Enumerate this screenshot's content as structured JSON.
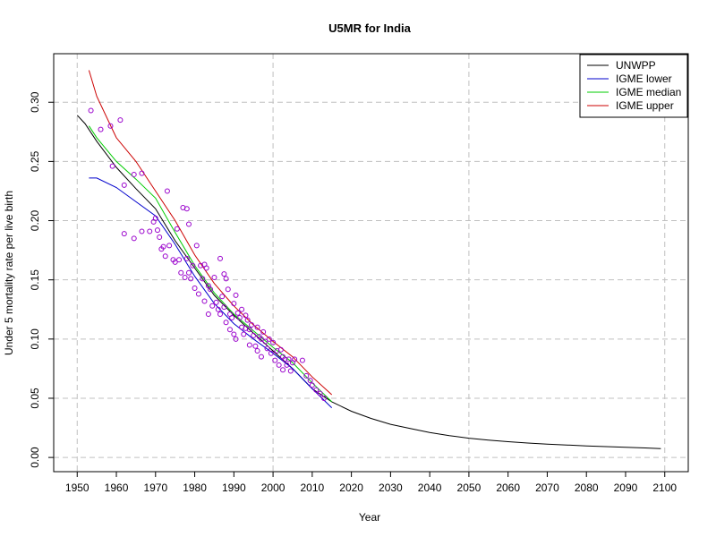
{
  "chart_data": {
    "type": "line",
    "title": "U5MR for India",
    "xlabel": "Year",
    "ylabel": "Under 5 mortality rate per live birth",
    "xlim": [
      1944,
      2106
    ],
    "ylim": [
      -0.012,
      0.341
    ],
    "x_ticks": [
      1950,
      1960,
      1970,
      1980,
      1990,
      2000,
      2010,
      2020,
      2030,
      2040,
      2050,
      2060,
      2070,
      2080,
      2090,
      2100
    ],
    "y_ticks": [
      0.0,
      0.05,
      0.1,
      0.15,
      0.2,
      0.25,
      0.3
    ],
    "y_tick_labels": [
      "0.00",
      "0.05",
      "0.10",
      "0.15",
      "0.20",
      "0.25",
      "0.30"
    ],
    "grid": true,
    "legend_position": "top-right",
    "series": [
      {
        "name": "UNWPP",
        "color": "#000000",
        "x": [
          1950,
          1952,
          1955,
          1960,
          1965,
          1970,
          1975,
          1980,
          1985,
          1990,
          1995,
          2000,
          2005,
          2010,
          2015,
          2020,
          2025,
          2030,
          2035,
          2040,
          2045,
          2050,
          2055,
          2060,
          2065,
          2070,
          2075,
          2080,
          2085,
          2090,
          2095,
          2099
        ],
        "y": [
          0.289,
          0.282,
          0.267,
          0.245,
          0.227,
          0.21,
          0.183,
          0.16,
          0.137,
          0.12,
          0.105,
          0.09,
          0.075,
          0.058,
          0.047,
          0.039,
          0.033,
          0.028,
          0.0245,
          0.021,
          0.0185,
          0.0163,
          0.0147,
          0.0133,
          0.0122,
          0.0113,
          0.0105,
          0.0098,
          0.0092,
          0.0086,
          0.008,
          0.0075
        ]
      },
      {
        "name": "IGME lower",
        "color": "#0000cc",
        "x": [
          1953,
          1955,
          1960,
          1965,
          1970,
          1975,
          1980,
          1985,
          1990,
          1995,
          2000,
          2005,
          2010,
          2015
        ],
        "y": [
          0.236,
          0.236,
          0.228,
          0.216,
          0.204,
          0.18,
          0.153,
          0.13,
          0.113,
          0.1,
          0.088,
          0.075,
          0.058,
          0.042
        ]
      },
      {
        "name": "IGME median",
        "color": "#00cc00",
        "x": [
          1953,
          1955,
          1960,
          1965,
          1970,
          1975,
          1980,
          1985,
          1990,
          1995,
          2000,
          2005,
          2010,
          2015
        ],
        "y": [
          0.28,
          0.27,
          0.25,
          0.235,
          0.219,
          0.19,
          0.162,
          0.139,
          0.121,
          0.107,
          0.093,
          0.08,
          0.063,
          0.047
        ]
      },
      {
        "name": "IGME upper",
        "color": "#cc0000",
        "x": [
          1953,
          1955,
          1960,
          1965,
          1970,
          1975,
          1980,
          1985,
          1990,
          1995,
          2000,
          2005,
          2010,
          2015
        ],
        "y": [
          0.327,
          0.305,
          0.27,
          0.25,
          0.225,
          0.2,
          0.171,
          0.147,
          0.128,
          0.112,
          0.098,
          0.085,
          0.068,
          0.053
        ]
      }
    ],
    "scatter": {
      "color": "#9900cc",
      "points": [
        [
          1953.5,
          0.293
        ],
        [
          1956,
          0.277
        ],
        [
          1958.5,
          0.28
        ],
        [
          1961,
          0.285
        ],
        [
          1959,
          0.246
        ],
        [
          1962,
          0.23
        ],
        [
          1964.5,
          0.239
        ],
        [
          1966.5,
          0.24
        ],
        [
          1962,
          0.189
        ],
        [
          1964.5,
          0.185
        ],
        [
          1966.5,
          0.191
        ],
        [
          1968.5,
          0.191
        ],
        [
          1969.5,
          0.199
        ],
        [
          1970,
          0.202
        ],
        [
          1970.5,
          0.192
        ],
        [
          1971,
          0.186
        ],
        [
          1971.5,
          0.176
        ],
        [
          1972,
          0.178
        ],
        [
          1972.5,
          0.17
        ],
        [
          1973,
          0.225
        ],
        [
          1973.5,
          0.179
        ],
        [
          1974.5,
          0.167
        ],
        [
          1975,
          0.165
        ],
        [
          1975.5,
          0.193
        ],
        [
          1976,
          0.167
        ],
        [
          1976.5,
          0.156
        ],
        [
          1977,
          0.211
        ],
        [
          1977.5,
          0.152
        ],
        [
          1978,
          0.168
        ],
        [
          1978,
          0.21
        ],
        [
          1978.5,
          0.197
        ],
        [
          1978.5,
          0.156
        ],
        [
          1979,
          0.151
        ],
        [
          1979.5,
          0.162
        ],
        [
          1980,
          0.143
        ],
        [
          1980.5,
          0.179
        ],
        [
          1981,
          0.138
        ],
        [
          1981.5,
          0.162
        ],
        [
          1982,
          0.151
        ],
        [
          1982.5,
          0.163
        ],
        [
          1982.5,
          0.132
        ],
        [
          1983,
          0.16
        ],
        [
          1983.5,
          0.145
        ],
        [
          1983.5,
          0.121
        ],
        [
          1984,
          0.142
        ],
        [
          1984.5,
          0.128
        ],
        [
          1985,
          0.152
        ],
        [
          1985.5,
          0.131
        ],
        [
          1986,
          0.125
        ],
        [
          1986.5,
          0.168
        ],
        [
          1986.5,
          0.121
        ],
        [
          1987,
          0.136
        ],
        [
          1987.5,
          0.155
        ],
        [
          1987.5,
          0.127
        ],
        [
          1988,
          0.151
        ],
        [
          1988,
          0.114
        ],
        [
          1988.5,
          0.142
        ],
        [
          1989,
          0.121
        ],
        [
          1989,
          0.108
        ],
        [
          1989.5,
          0.118
        ],
        [
          1990,
          0.13
        ],
        [
          1990,
          0.104
        ],
        [
          1990.5,
          0.137
        ],
        [
          1990.5,
          0.1
        ],
        [
          1991,
          0.122
        ],
        [
          1991.5,
          0.118
        ],
        [
          1992,
          0.125
        ],
        [
          1992,
          0.11
        ],
        [
          1992.5,
          0.104
        ],
        [
          1993,
          0.12
        ],
        [
          1993,
          0.109
        ],
        [
          1993.5,
          0.116
        ],
        [
          1994,
          0.108
        ],
        [
          1994,
          0.095
        ],
        [
          1994.5,
          0.112
        ],
        [
          1995,
          0.103
        ],
        [
          1995.5,
          0.094
        ],
        [
          1996,
          0.11
        ],
        [
          1996,
          0.09
        ],
        [
          1996.5,
          0.102
        ],
        [
          1997,
          0.1
        ],
        [
          1997,
          0.085
        ],
        [
          1997.5,
          0.106
        ],
        [
          1998,
          0.098
        ],
        [
          1998.5,
          0.092
        ],
        [
          1999,
          0.1
        ],
        [
          1999.5,
          0.088
        ],
        [
          2000,
          0.097
        ],
        [
          2000.5,
          0.082
        ],
        [
          2001,
          0.09
        ],
        [
          2001.5,
          0.078
        ],
        [
          2002,
          0.091
        ],
        [
          2002.5,
          0.085
        ],
        [
          2002.5,
          0.074
        ],
        [
          2003,
          0.083
        ],
        [
          2003.5,
          0.078
        ],
        [
          2004,
          0.083
        ],
        [
          2004.5,
          0.073
        ],
        [
          2005,
          0.08
        ],
        [
          2005.5,
          0.083
        ],
        [
          2007.5,
          0.082
        ],
        [
          2008.5,
          0.069
        ],
        [
          2009.5,
          0.065
        ],
        [
          2010,
          0.061
        ],
        [
          2011,
          0.057
        ],
        [
          2012,
          0.054
        ],
        [
          2013,
          0.05
        ]
      ]
    }
  }
}
